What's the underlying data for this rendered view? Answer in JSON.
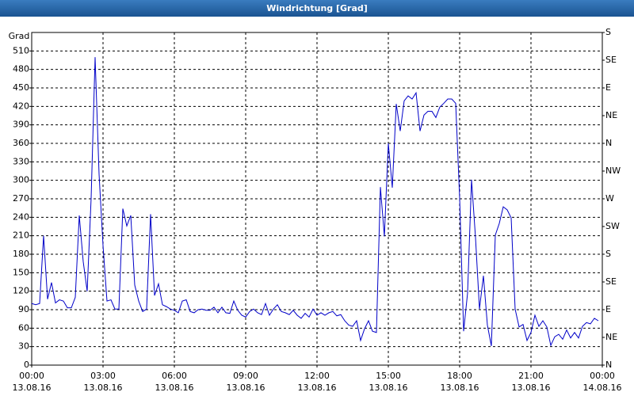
{
  "chart_data": {
    "type": "line",
    "title": "Windrichtung [Grad]",
    "y_label": "Grad",
    "xlim": [
      0,
      1440
    ],
    "xticks": [
      {
        "value": 0,
        "label": "00:00",
        "date": "13.08.16"
      },
      {
        "value": 180,
        "label": "03:00",
        "date": "13.08.16"
      },
      {
        "value": 360,
        "label": "06:00",
        "date": "13.08.16"
      },
      {
        "value": 540,
        "label": "09:00",
        "date": "13.08.16"
      },
      {
        "value": 720,
        "label": "12:00",
        "date": "13.08.16"
      },
      {
        "value": 900,
        "label": "15:00",
        "date": "13.08.16"
      },
      {
        "value": 1080,
        "label": "18:00",
        "date": "13.08.16"
      },
      {
        "value": 1260,
        "label": "21:00",
        "date": "13.08.16"
      },
      {
        "value": 1440,
        "label": "00:00",
        "date": "14.08.16"
      }
    ],
    "ylim": [
      0,
      540
    ],
    "yticks": [
      0,
      30,
      60,
      90,
      120,
      150,
      180,
      210,
      240,
      270,
      300,
      330,
      360,
      390,
      420,
      450,
      480,
      510
    ],
    "y2lim": [
      0,
      540
    ],
    "y2ticks": [
      {
        "value": 0,
        "label": "N"
      },
      {
        "value": 45,
        "label": "NE"
      },
      {
        "value": 90,
        "label": "E"
      },
      {
        "value": 135,
        "label": "SE"
      },
      {
        "value": 180,
        "label": "S"
      },
      {
        "value": 225,
        "label": "SW"
      },
      {
        "value": 270,
        "label": "W"
      },
      {
        "value": 315,
        "label": "NW"
      },
      {
        "value": 360,
        "label": "N"
      },
      {
        "value": 405,
        "label": "NE"
      },
      {
        "value": 450,
        "label": "E"
      },
      {
        "value": 495,
        "label": "SE"
      },
      {
        "value": 540,
        "label": "S"
      }
    ],
    "grid": true,
    "x": [
      0,
      10,
      20,
      30,
      40,
      50,
      60,
      70,
      80,
      90,
      100,
      110,
      120,
      130,
      140,
      150,
      160,
      170,
      180,
      190,
      200,
      210,
      220,
      230,
      240,
      250,
      260,
      270,
      280,
      290,
      300,
      310,
      320,
      330,
      340,
      350,
      360,
      370,
      380,
      390,
      400,
      410,
      420,
      430,
      440,
      450,
      460,
      470,
      480,
      490,
      500,
      510,
      520,
      530,
      540,
      550,
      560,
      570,
      580,
      590,
      600,
      610,
      620,
      630,
      640,
      650,
      660,
      670,
      680,
      690,
      700,
      710,
      720,
      730,
      740,
      750,
      760,
      770,
      780,
      790,
      800,
      810,
      820,
      830,
      840,
      850,
      860,
      870,
      880,
      890,
      900,
      910,
      920,
      930,
      940,
      950,
      960,
      970,
      980,
      990,
      1000,
      1010,
      1020,
      1030,
      1040,
      1050,
      1060,
      1070,
      1080,
      1090,
      1100,
      1110,
      1120,
      1130,
      1140,
      1150,
      1160,
      1170,
      1180,
      1190,
      1200,
      1210,
      1220,
      1230,
      1240,
      1250,
      1260,
      1270,
      1280,
      1290,
      1300,
      1310,
      1320,
      1330,
      1340,
      1350,
      1360,
      1370,
      1380,
      1390,
      1400,
      1410,
      1420,
      1430
    ],
    "series": [
      {
        "color": "#0000c8",
        "values": [
          100,
          98,
          100,
          210,
          107,
          134,
          101,
          106,
          104,
          93,
          93,
          110,
          243,
          168,
          120,
          271,
          500,
          310,
          194,
          104,
          106,
          91,
          91,
          254,
          226,
          243,
          130,
          104,
          87,
          91,
          245,
          113,
          132,
          98,
          95,
          91,
          89,
          85,
          104,
          106,
          87,
          85,
          90,
          91,
          89,
          89,
          94,
          85,
          94,
          85,
          84,
          104,
          89,
          81,
          78,
          87,
          91,
          85,
          82,
          100,
          81,
          91,
          98,
          87,
          85,
          82,
          89,
          81,
          76,
          84,
          78,
          91,
          81,
          85,
          81,
          85,
          87,
          80,
          82,
          72,
          65,
          63,
          72,
          40,
          59,
          72,
          55,
          53,
          289,
          209,
          360,
          288,
          424,
          380,
          429,
          437,
          432,
          442,
          380,
          406,
          412,
          412,
          402,
          419,
          425,
          432,
          432,
          425,
          271,
          55,
          117,
          301,
          207,
          91,
          145,
          65,
          31,
          211,
          230,
          257,
          252,
          239,
          91,
          62,
          66,
          40,
          53,
          81,
          63,
          72,
          62,
          32,
          46,
          50,
          42,
          57,
          44,
          53,
          44,
          63,
          69,
          67,
          76,
          72
        ]
      }
    ]
  }
}
